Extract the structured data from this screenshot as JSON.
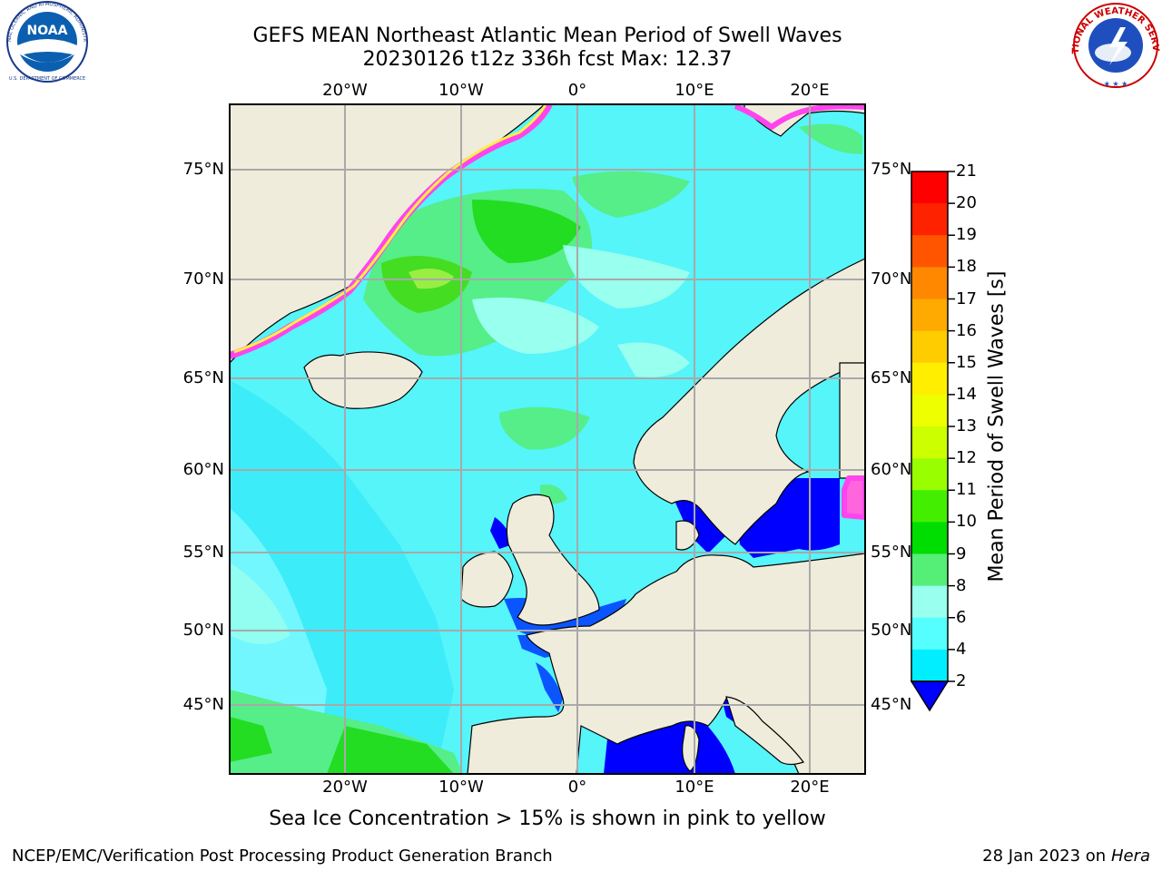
{
  "title_line1": "GEFS MEAN Northeast Atlantic Mean Period of Swell Waves",
  "title_line2": "20230126 t12z 336h fcst   Max: 12.37",
  "noaa_logo": {
    "text": "NOAA",
    "ring_text": "NATIONAL OCEANIC AND ATMOSPHERIC ADMINISTRATION",
    "ring_text_bottom": "U.S. DEPARTMENT OF COMMERCE"
  },
  "nws_logo": {
    "ring_text": "NATIONAL WEATHER SERVICE"
  },
  "map": {
    "lon_top_labels": [
      "20°W",
      "10°W",
      "0°",
      "10°E",
      "20°E"
    ],
    "lon_bottom_labels": [
      "20°W",
      "10°W",
      "0°",
      "10°E",
      "20°E"
    ],
    "lat_left_labels": [
      "75°N",
      "70°N",
      "65°N",
      "60°N",
      "55°N",
      "50°N",
      "45°N"
    ],
    "lat_right_labels": [
      "75°N",
      "70°N",
      "65°N",
      "60°N",
      "55°N",
      "50°N",
      "45°N"
    ],
    "colors": {
      "land": "#efecdc",
      "ocean_base": "#55f5fa",
      "low_period": "#0000ff",
      "grid": "#a9a9a9",
      "sea_ice_pink": "#ff44ee",
      "sea_ice_yellow": "#ffee44"
    }
  },
  "colorbar": {
    "label": "Mean Period of Swell Waves [s]",
    "ticks": [
      "21",
      "20",
      "19",
      "18",
      "17",
      "16",
      "15",
      "14",
      "13",
      "12",
      "11",
      "10",
      "9",
      "8",
      "6",
      "4",
      "2"
    ],
    "colors": [
      "#ff0000",
      "#ff2200",
      "#ff5500",
      "#ff8800",
      "#ffaa00",
      "#ffcc00",
      "#ffee00",
      "#eeff00",
      "#ccff00",
      "#99ff00",
      "#44ee00",
      "#00dd00",
      "#55ee77",
      "#99ffee",
      "#55ffff",
      "#00eeff",
      "#0088ff"
    ],
    "under_color": "#0000ff"
  },
  "note": "Sea Ice Concentration > 15% is shown in pink to yellow",
  "footer_left": "NCEP/EMC/Verification Post Processing Product Generation Branch",
  "footer_right_date": "28 Jan 2023 on",
  "footer_right_host": "Hera"
}
